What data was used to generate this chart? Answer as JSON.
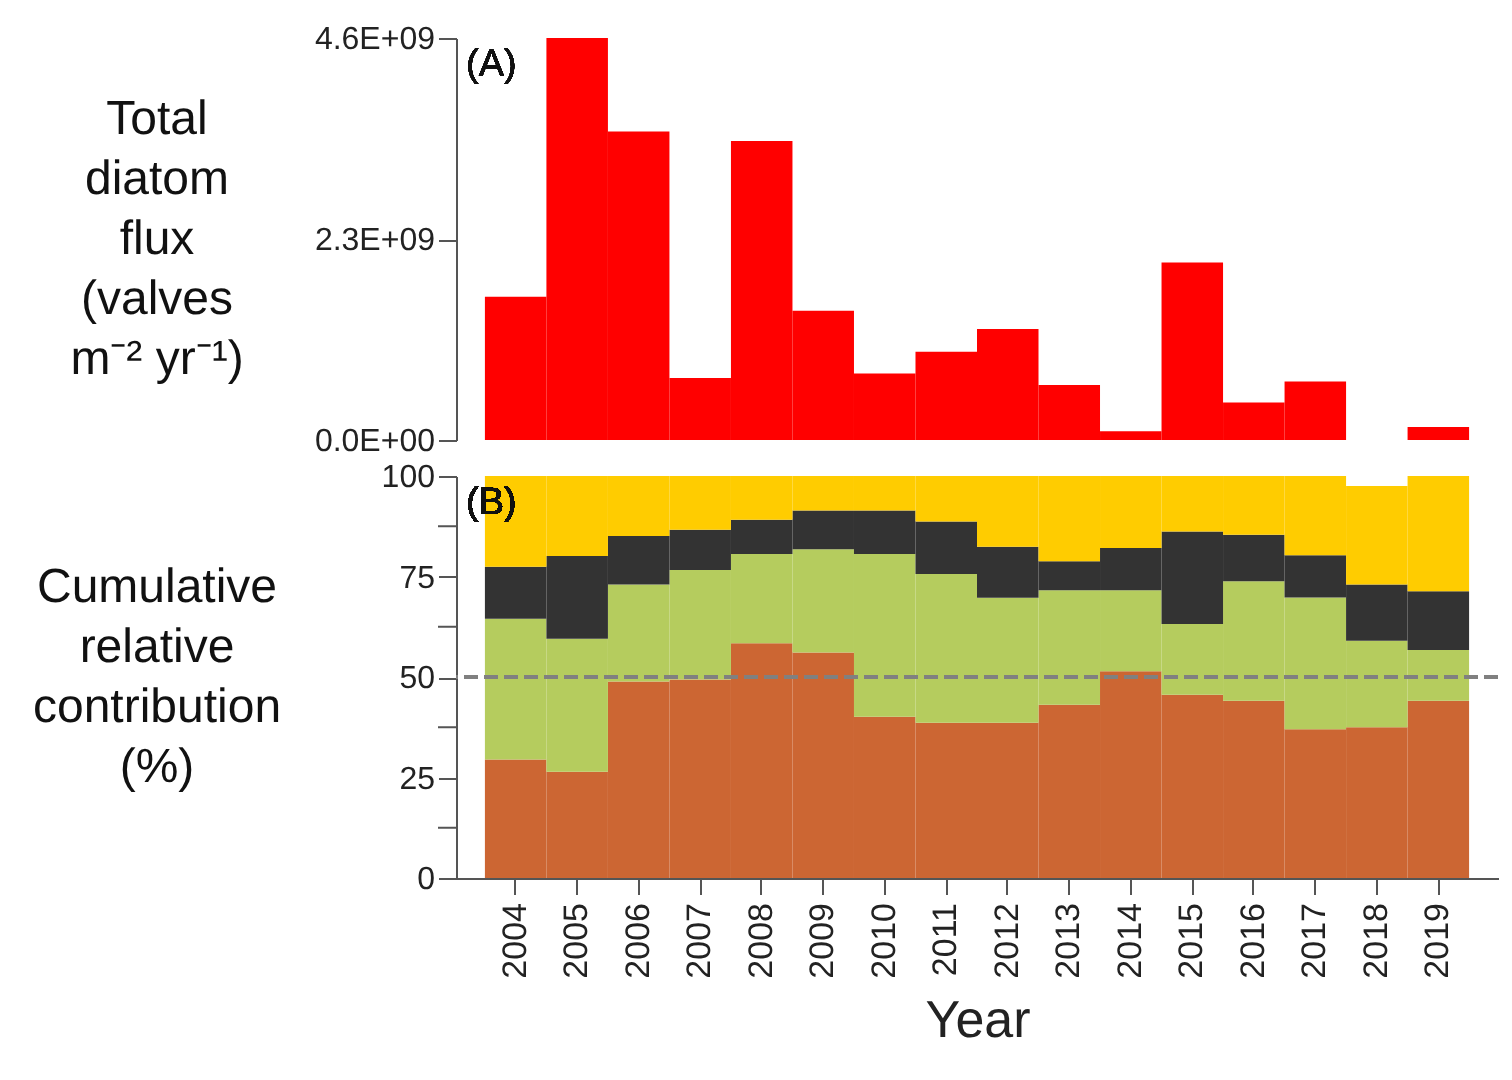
{
  "chart_data": [
    {
      "type": "bar",
      "ylabel": "Total diatom flux (valves m⁻² yr⁻¹)",
      "annotations": [
        "(A)"
      ],
      "tick_labels": "y",
      "categories": [
        "2004",
        "2005",
        "2006",
        "2007",
        "2008",
        "2009",
        "2010",
        "2011",
        "2012",
        "2013",
        "2014",
        "2015",
        "2016",
        "2017",
        "2018",
        "2019"
      ],
      "series": [
        {
          "color": "#ff0000",
          "values": [
            1640000000.0,
            4600000000.0,
            3530000000.0,
            710000000.0,
            3420000000.0,
            1480000000.0,
            760000000.0,
            1010000000.0,
            1270000000.0,
            630000000.0,
            100000000.0,
            2030000000.0,
            430000000.0,
            670000000.0,
            null,
            150000000.0
          ]
        }
      ],
      "ylim": [
        0,
        4600000000.0
      ],
      "yticks": [
        {
          "value": 0,
          "label": "0.0E+00"
        },
        {
          "value": 2300000000.0,
          "label": "2.3E+09"
        },
        {
          "value": 4600000000.0,
          "label": "4.6E+09"
        }
      ]
    },
    {
      "type": "bar",
      "stacked": true,
      "xlabel": "Year",
      "ylabel": "Cumulative relative contribution (%)",
      "annotations": [
        "(B)"
      ],
      "categories": [
        "2004",
        "2005",
        "2006",
        "2007",
        "2008",
        "2009",
        "2010",
        "2011",
        "2012",
        "2013",
        "2014",
        "2015",
        "2016",
        "2017",
        "2018",
        "2019"
      ],
      "series": [
        {
          "color": "#cc6633",
          "values": [
            29.5,
            26.4,
            48.9,
            49.4,
            58.4,
            56.1,
            40.1,
            38.6,
            38.6,
            43.1,
            51.4,
            45.6,
            44.1,
            37.0,
            37.5,
            44.1
          ]
        },
        {
          "color": "#b5cc5e",
          "values": [
            35.0,
            33.1,
            24.1,
            27.2,
            22.2,
            25.7,
            40.5,
            37.0,
            31.1,
            28.5,
            20.2,
            17.6,
            29.7,
            32.8,
            21.5,
            12.6
          ]
        },
        {
          "color": "#333333",
          "values": [
            12.9,
            20.6,
            12.1,
            10.0,
            8.5,
            9.6,
            10.8,
            13.1,
            12.7,
            7.2,
            10.5,
            23.0,
            11.6,
            10.5,
            14.0,
            14.6
          ]
        },
        {
          "color": "#ffcc00",
          "values": [
            22.6,
            19.9,
            14.9,
            13.4,
            10.9,
            8.6,
            8.6,
            11.3,
            17.6,
            21.2,
            17.9,
            13.8,
            14.6,
            19.7,
            24.5,
            28.7
          ]
        }
      ],
      "ylim": [
        0,
        100
      ],
      "yticks": [
        0,
        {
          "value": 12.5,
          "label": null
        },
        25,
        {
          "value": 37.5,
          "label": null
        },
        50,
        {
          "value": 62.5,
          "label": null
        },
        75,
        {
          "value": 87.5,
          "label": null
        },
        100
      ],
      "ref_lines": [
        {
          "axis": "y",
          "value": 50,
          "color": "#808080",
          "line_style": "dashed"
        }
      ]
    }
  ]
}
